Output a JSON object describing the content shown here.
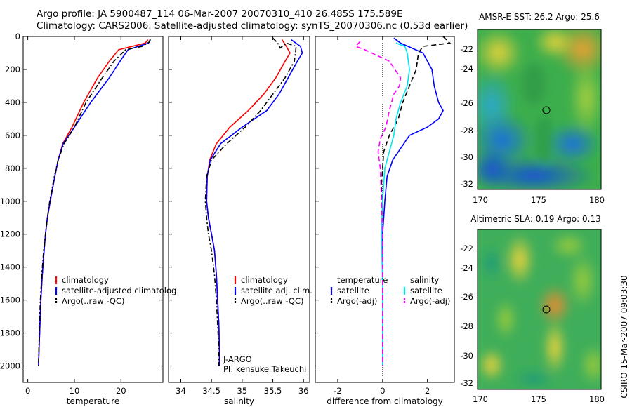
{
  "header": {
    "line1": "Argo profile: JA 5900487_114 06-Mar-2007 20070310_410 26.485S 175.589E",
    "line2": "Climatology: CARS2006. Satellite-adjusted climatology: synTS_20070306.nc (0.53d earlier)"
  },
  "side_text": "CSIRO 15-Mar-2007 09:03:30",
  "colors": {
    "climatology": "#ff0000",
    "satellite": "#0000ff",
    "argo": "#000000",
    "sat_salinity": "#00e5ee",
    "argo_salinity": "#ff00ff"
  },
  "chart_data": [
    {
      "type": "line",
      "xlabel": "temperature",
      "ylabel": "",
      "xlim": [
        -1,
        29
      ],
      "ylim": [
        2100,
        0
      ],
      "xticks": [
        0,
        10,
        20
      ],
      "yticks": [
        0,
        200,
        400,
        600,
        800,
        1000,
        1200,
        1400,
        1600,
        1800,
        2000
      ],
      "legend": [
        "climatology",
        "satellite-adjusted climatolog",
        "Argo(..raw -QC)"
      ],
      "series": [
        {
          "name": "climatology",
          "color": "#ff0000",
          "style": "solid",
          "x": [
            25.8,
            25.2,
            19.5,
            17.5,
            15.0,
            12.0,
            9.5,
            7.5,
            6.5,
            5.8,
            4.8,
            4.2,
            3.8,
            3.5,
            3.1,
            2.8,
            2.6,
            2.4,
            2.3
          ],
          "y": [
            20,
            40,
            80,
            150,
            250,
            400,
            550,
            650,
            750,
            850,
            1000,
            1100,
            1200,
            1300,
            1450,
            1600,
            1750,
            1900,
            2000
          ]
        },
        {
          "name": "satellite-adjusted climatolog",
          "color": "#0000ff",
          "style": "solid",
          "x": [
            26.3,
            25.9,
            21.5,
            19.8,
            17.5,
            13.5,
            10.0,
            7.6,
            6.5,
            5.8,
            4.8,
            4.2,
            3.8,
            3.5,
            3.1,
            2.8,
            2.6,
            2.4,
            2.3
          ],
          "y": [
            20,
            40,
            80,
            150,
            250,
            400,
            550,
            650,
            750,
            850,
            1000,
            1100,
            1200,
            1300,
            1450,
            1600,
            1750,
            1900,
            2000
          ]
        },
        {
          "name": "Argo(..raw -QC)",
          "color": "#000000",
          "style": "dash-dot",
          "x": [
            26.3,
            26.0,
            24.5,
            21.0,
            18.5,
            16.0,
            12.5,
            10.0,
            7.8,
            6.5,
            5.7,
            4.7,
            4.2,
            3.8,
            3.4,
            3.0,
            2.7,
            2.5,
            2.3
          ],
          "y": [
            15,
            35,
            60,
            80,
            150,
            250,
            400,
            550,
            650,
            750,
            850,
            1000,
            1100,
            1200,
            1300,
            1450,
            1600,
            1750,
            2000
          ]
        }
      ]
    },
    {
      "type": "line",
      "xlabel": "salinity",
      "ylabel": "",
      "xlim": [
        33.8,
        36.1
      ],
      "ylim": [
        2100,
        0
      ],
      "xticks": [
        34,
        34.5,
        35,
        35.5,
        36
      ],
      "xtick_labels": [
        "34",
        "34.5",
        "35",
        "35.5",
        "36"
      ],
      "legend": [
        "climatology",
        "satellite adj. clim.",
        "Argo(..raw -QC)"
      ],
      "annotation": [
        "J-ARGO",
        "PI: kensuke Takeuchi"
      ],
      "series": [
        {
          "name": "climatology",
          "color": "#ff0000",
          "style": "solid",
          "x": [
            35.65,
            35.72,
            35.78,
            35.7,
            35.55,
            35.35,
            35.1,
            34.8,
            34.58,
            34.47,
            34.43,
            34.42,
            34.45,
            34.5,
            34.55,
            34.58,
            34.6,
            34.62,
            34.63,
            34.63
          ],
          "y": [
            20,
            60,
            100,
            150,
            250,
            350,
            450,
            550,
            650,
            750,
            850,
            1000,
            1100,
            1200,
            1300,
            1450,
            1600,
            1750,
            1900,
            2000
          ]
        },
        {
          "name": "satellite adj. clim.",
          "color": "#0000ff",
          "style": "solid",
          "x": [
            35.8,
            35.95,
            35.98,
            35.9,
            35.75,
            35.6,
            35.4,
            35.0,
            34.65,
            34.48,
            34.43,
            34.42,
            34.45,
            34.5,
            34.55,
            34.58,
            34.6,
            34.62,
            34.63,
            34.63
          ],
          "y": [
            20,
            60,
            100,
            150,
            250,
            350,
            450,
            550,
            650,
            750,
            850,
            1000,
            1100,
            1200,
            1300,
            1450,
            1600,
            1750,
            1900,
            2000
          ]
        },
        {
          "name": "Argo(..raw -QC)",
          "color": "#000000",
          "style": "dash-dot",
          "x": [
            35.5,
            35.58,
            35.62,
            35.72,
            35.88,
            35.85,
            35.7,
            35.5,
            35.3,
            35.05,
            34.75,
            34.5,
            34.42,
            34.4,
            34.42,
            34.45,
            34.5,
            34.55,
            34.58,
            34.6,
            34.62,
            34.62
          ],
          "y": [
            10,
            40,
            70,
            40,
            60,
            150,
            250,
            350,
            450,
            550,
            650,
            750,
            850,
            1000,
            1100,
            1200,
            1300,
            1450,
            1600,
            1750,
            1900,
            2000
          ]
        }
      ]
    },
    {
      "type": "line",
      "xlabel": "difference from climatology",
      "ylabel": "",
      "xlim": [
        -3,
        3.2
      ],
      "ylim": [
        2100,
        0
      ],
      "xticks": [
        -2,
        0,
        2
      ],
      "legend": [
        "temperature",
        "satellite",
        "Argo(-adj)",
        "salinity",
        "satellite",
        "Argo(-adj)"
      ],
      "series": [
        {
          "name": "temperature satellite",
          "color": "#0000ff",
          "style": "solid",
          "x": [
            0.5,
            0.8,
            1.8,
            2.2,
            2.3,
            2.5,
            2.7,
            2.5,
            2.0,
            1.2,
            0.7,
            0.45,
            0.2,
            0.1,
            0.0,
            0.0,
            0.0,
            0.0
          ],
          "y": [
            10,
            40,
            100,
            200,
            300,
            400,
            450,
            500,
            550,
            600,
            700,
            750,
            850,
            1000,
            1200,
            1500,
            1800,
            2000
          ]
        },
        {
          "name": "temperature Argo(-adj)",
          "color": "#000000",
          "style": "dashed",
          "x": [
            2.7,
            3.0,
            1.8,
            1.6,
            1.5,
            1.2,
            0.9,
            0.8,
            0.7,
            0.3,
            0.05,
            0.0,
            -0.05,
            0.0,
            0.0,
            0.0,
            0.0
          ],
          "y": [
            0,
            40,
            60,
            100,
            200,
            300,
            400,
            450,
            500,
            600,
            700,
            800,
            900,
            1200,
            1500,
            1800,
            2000
          ]
        },
        {
          "name": "salinity satellite",
          "color": "#00e5ee",
          "style": "solid",
          "x": [
            0.6,
            1.0,
            1.1,
            1.2,
            1.1,
            0.8,
            0.6,
            0.5,
            0.3,
            0.1,
            0.0,
            -0.05,
            0.0,
            0.0,
            0.0
          ],
          "y": [
            40,
            60,
            100,
            200,
            300,
            400,
            500,
            600,
            700,
            800,
            1000,
            1200,
            1500,
            1800,
            2000
          ]
        },
        {
          "name": "salinity Argo(-adj)",
          "color": "#ff00ff",
          "style": "dashed",
          "x": [
            -1.0,
            -1.2,
            -0.8,
            0.3,
            0.8,
            0.75,
            0.5,
            0.3,
            0.15,
            -0.1,
            -0.2,
            -0.1,
            -0.05,
            0.0,
            0.0,
            0.0
          ],
          "y": [
            30,
            60,
            80,
            150,
            250,
            300,
            350,
            450,
            550,
            620,
            700,
            800,
            1000,
            1200,
            1500,
            2000
          ]
        }
      ]
    },
    {
      "type": "heatmap",
      "title": "AMSR-E SST: 26.2 Argo: 25.6",
      "xlim": [
        170,
        181
      ],
      "ylim": [
        -32.6,
        -20.8
      ],
      "xticks": [
        170,
        175,
        180
      ],
      "yticks": [
        -22,
        -24,
        -26,
        -28,
        -30,
        -32
      ],
      "marker": {
        "x": 175.6,
        "y": -26.5
      }
    },
    {
      "type": "heatmap",
      "title": "Altimetric SLA: 0.19 Argo: 0.13",
      "xlim": [
        170,
        181
      ],
      "ylim": [
        -32.6,
        -20.8
      ],
      "xticks": [
        170,
        175,
        180
      ],
      "yticks": [
        -22,
        -24,
        -26,
        -28,
        -30,
        -32
      ],
      "marker": {
        "x": 175.6,
        "y": -26.5
      }
    }
  ]
}
